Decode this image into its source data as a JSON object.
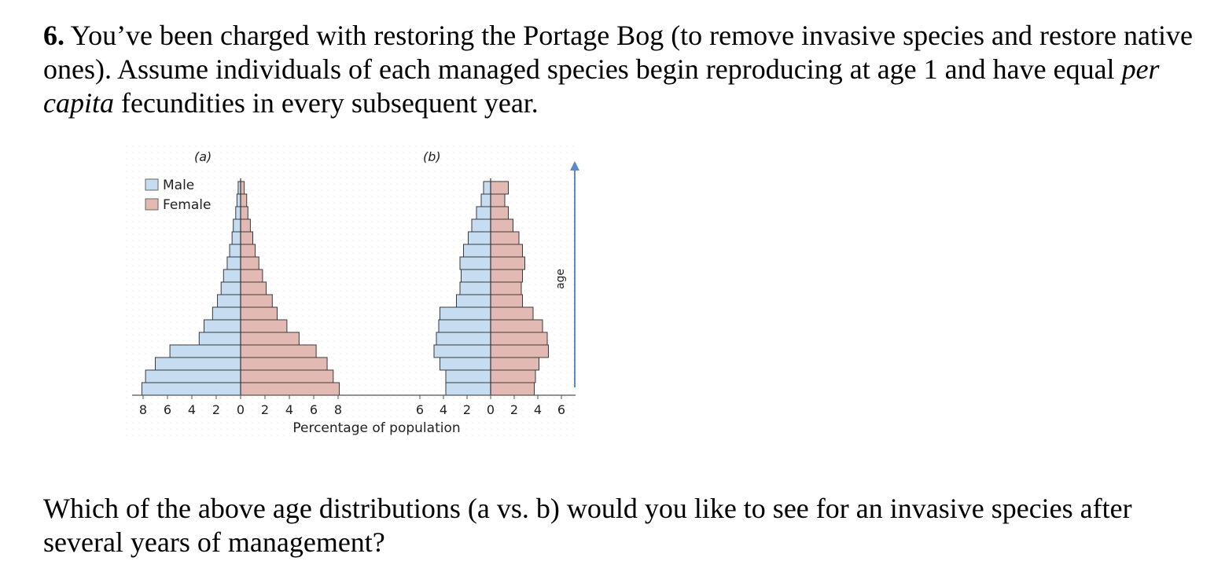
{
  "question": {
    "number": "6.",
    "text_before_italic": "You’ve been charged with restoring the Portage Bog (to remove invasive species and restore native ones).  Assume individuals of each managed species begin reproducing at age 1 and have equal ",
    "italic": "per capita",
    "text_after_italic": " fecundities in every subsequent year."
  },
  "followup": "Which of the above age distributions (a vs. b) would you like to see for an invasive species after several years of management?",
  "colors": {
    "male": "#c5dcf1",
    "female": "#e3b9b4",
    "bar_edge": "#3a3a3a",
    "age_arrow": "#5b8bc5"
  },
  "chart_data": [
    {
      "type": "population_pyramid",
      "panel_label": "(a)",
      "legend": [
        "Male",
        "Female"
      ],
      "legend_placement": "top-left",
      "xlabel": "Percentage of population",
      "ylabel": "age",
      "x_ticks": [
        "8",
        "6",
        "4",
        "2",
        "0",
        "2",
        "4",
        "6",
        "8"
      ],
      "xlim": [
        -8,
        8
      ],
      "series": [
        {
          "name": "Male",
          "values": [
            8.1,
            7.8,
            7.0,
            5.8,
            3.4,
            3.0,
            2.3,
            1.9,
            1.6,
            1.4,
            1.1,
            0.9,
            0.7,
            0.6,
            0.4,
            0.3,
            0.2
          ]
        },
        {
          "name": "Female",
          "values": [
            8.1,
            7.6,
            7.1,
            6.2,
            4.8,
            3.8,
            3.0,
            2.6,
            2.1,
            1.8,
            1.5,
            1.2,
            1.0,
            0.8,
            0.6,
            0.5,
            0.3
          ]
        }
      ],
      "grid": false
    },
    {
      "type": "population_pyramid",
      "panel_label": "(b)",
      "xlabel": "Percentage of population",
      "ylabel": "age",
      "x_ticks": [
        "6",
        "4",
        "2",
        "0",
        "2",
        "4",
        "6"
      ],
      "xlim": [
        -6,
        6
      ],
      "series": [
        {
          "name": "Male",
          "values": [
            3.8,
            3.8,
            4.3,
            4.8,
            4.6,
            4.4,
            4.3,
            2.9,
            2.6,
            2.5,
            2.6,
            2.3,
            1.9,
            1.6,
            1.2,
            0.8,
            0.6
          ]
        },
        {
          "name": "Female",
          "values": [
            3.7,
            3.8,
            4.1,
            4.9,
            4.8,
            4.4,
            3.6,
            2.7,
            2.6,
            2.7,
            2.9,
            2.7,
            2.4,
            1.9,
            1.5,
            1.2,
            1.5
          ]
        }
      ],
      "grid": false
    }
  ]
}
